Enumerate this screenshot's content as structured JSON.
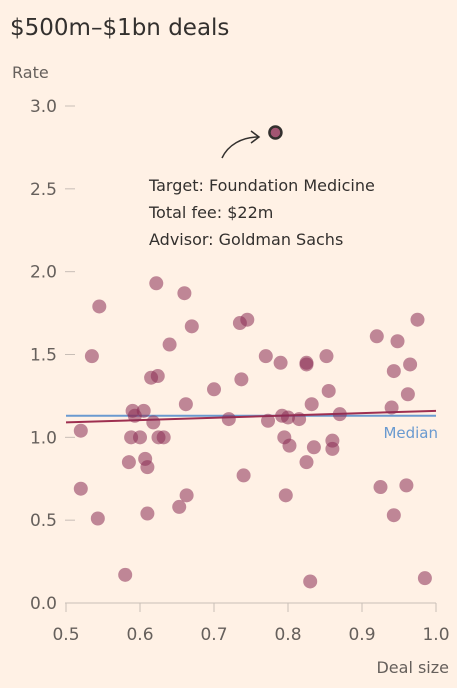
{
  "chart_data": {
    "type": "scatter",
    "title": "$500m–$1bn deals",
    "ylabel": "Rate",
    "xlabel": "Deal size",
    "xlim": [
      0.5,
      1.0
    ],
    "ylim": [
      0.0,
      3.0
    ],
    "x_ticks": [
      0.5,
      0.6,
      0.7,
      0.8,
      0.9,
      1.0
    ],
    "x_tick_labels": [
      "0.5",
      "0.6",
      "0.7",
      "0.8",
      "0.9",
      "1.0"
    ],
    "y_ticks": [
      0.0,
      0.5,
      1.0,
      1.5,
      2.0,
      2.5,
      3.0
    ],
    "y_tick_labels": [
      "0.0",
      "0.5",
      "1.0",
      "1.5",
      "2.0",
      "2.5",
      "3.0"
    ],
    "grid": false,
    "colors": {
      "background": "#fff1e5",
      "point": "#8b2e55",
      "trend": "#9e2f50",
      "median": "#6a9ad0",
      "text": "#33302e",
      "tick": "#66605c",
      "axis": "#c8beb6"
    },
    "points": [
      {
        "x": 0.52,
        "y": 1.04
      },
      {
        "x": 0.52,
        "y": 0.69
      },
      {
        "x": 0.535,
        "y": 1.49
      },
      {
        "x": 0.545,
        "y": 1.79
      },
      {
        "x": 0.543,
        "y": 0.51
      },
      {
        "x": 0.58,
        "y": 0.17
      },
      {
        "x": 0.585,
        "y": 0.85
      },
      {
        "x": 0.588,
        "y": 1.0
      },
      {
        "x": 0.59,
        "y": 1.16
      },
      {
        "x": 0.593,
        "y": 1.13
      },
      {
        "x": 0.6,
        "y": 1.0
      },
      {
        "x": 0.605,
        "y": 1.16
      },
      {
        "x": 0.607,
        "y": 0.87
      },
      {
        "x": 0.61,
        "y": 0.82
      },
      {
        "x": 0.61,
        "y": 0.54
      },
      {
        "x": 0.615,
        "y": 1.36
      },
      {
        "x": 0.618,
        "y": 1.09
      },
      {
        "x": 0.622,
        "y": 1.93
      },
      {
        "x": 0.624,
        "y": 1.37
      },
      {
        "x": 0.625,
        "y": 1.0
      },
      {
        "x": 0.632,
        "y": 1.0
      },
      {
        "x": 0.64,
        "y": 1.56
      },
      {
        "x": 0.653,
        "y": 0.58
      },
      {
        "x": 0.66,
        "y": 1.87
      },
      {
        "x": 0.662,
        "y": 1.2
      },
      {
        "x": 0.663,
        "y": 0.65
      },
      {
        "x": 0.67,
        "y": 1.67
      },
      {
        "x": 0.7,
        "y": 1.29
      },
      {
        "x": 0.72,
        "y": 1.11
      },
      {
        "x": 0.735,
        "y": 1.69
      },
      {
        "x": 0.737,
        "y": 1.35
      },
      {
        "x": 0.74,
        "y": 0.77
      },
      {
        "x": 0.745,
        "y": 1.71
      },
      {
        "x": 0.77,
        "y": 1.49
      },
      {
        "x": 0.773,
        "y": 1.1
      },
      {
        "x": 0.79,
        "y": 1.45
      },
      {
        "x": 0.792,
        "y": 1.13
      },
      {
        "x": 0.795,
        "y": 1.0
      },
      {
        "x": 0.797,
        "y": 0.65
      },
      {
        "x": 0.8,
        "y": 1.12
      },
      {
        "x": 0.802,
        "y": 0.95
      },
      {
        "x": 0.815,
        "y": 1.11
      },
      {
        "x": 0.825,
        "y": 1.45
      },
      {
        "x": 0.825,
        "y": 1.44
      },
      {
        "x": 0.825,
        "y": 0.85
      },
      {
        "x": 0.83,
        "y": 0.13
      },
      {
        "x": 0.832,
        "y": 1.2
      },
      {
        "x": 0.835,
        "y": 0.94
      },
      {
        "x": 0.852,
        "y": 1.49
      },
      {
        "x": 0.855,
        "y": 1.28
      },
      {
        "x": 0.86,
        "y": 0.98
      },
      {
        "x": 0.86,
        "y": 0.93
      },
      {
        "x": 0.87,
        "y": 1.14
      },
      {
        "x": 0.92,
        "y": 1.61
      },
      {
        "x": 0.925,
        "y": 0.7
      },
      {
        "x": 0.94,
        "y": 1.18
      },
      {
        "x": 0.943,
        "y": 1.4
      },
      {
        "x": 0.943,
        "y": 0.53
      },
      {
        "x": 0.948,
        "y": 1.58
      },
      {
        "x": 0.96,
        "y": 0.71
      },
      {
        "x": 0.962,
        "y": 1.26
      },
      {
        "x": 0.965,
        "y": 1.44
      },
      {
        "x": 0.975,
        "y": 1.71
      },
      {
        "x": 0.985,
        "y": 0.15
      }
    ],
    "highlight": {
      "x": 0.783,
      "y": 2.84,
      "lines": [
        "Target: Foundation Medicine",
        "Total fee: $22m",
        "Advisor: Goldman Sachs"
      ]
    },
    "trend_line": {
      "x": [
        0.5,
        1.0
      ],
      "y": [
        1.09,
        1.16
      ]
    },
    "median_line": {
      "label": "Median",
      "x": [
        0.5,
        1.0
      ],
      "y": [
        1.13,
        1.13
      ]
    }
  }
}
